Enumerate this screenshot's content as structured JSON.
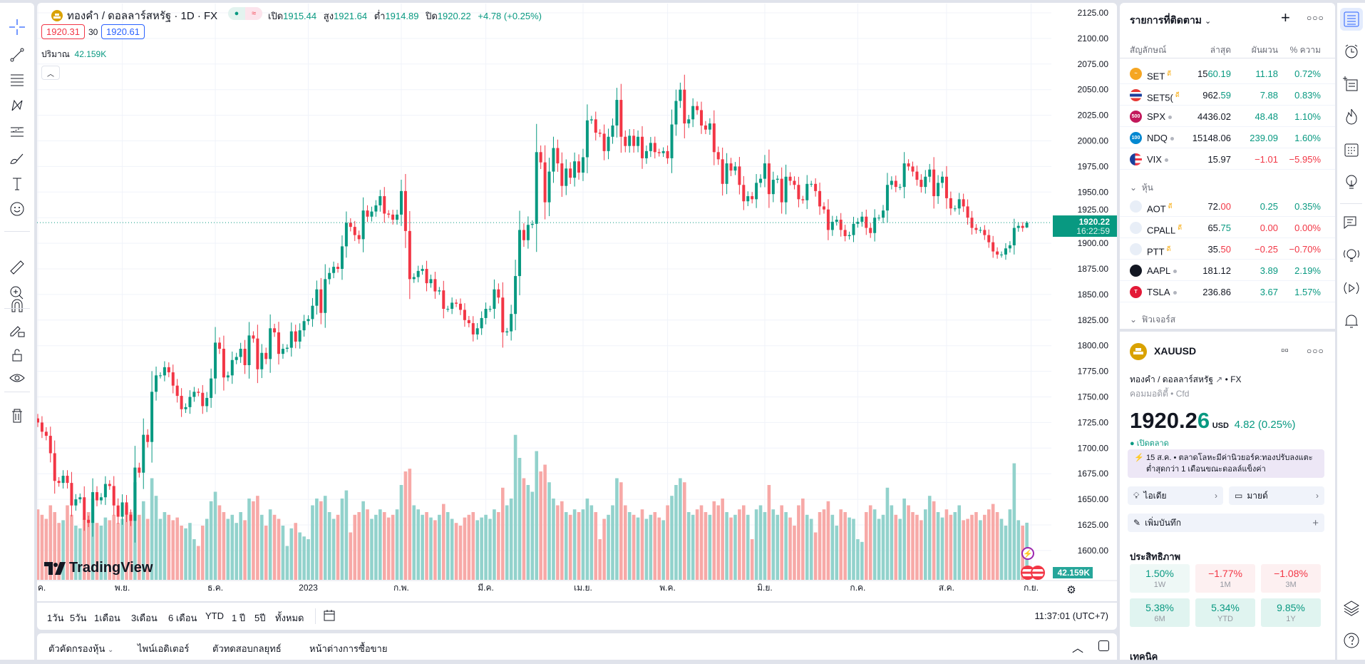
{
  "colors": {
    "up": "#089981",
    "down": "#f23645",
    "vol_up": "#92d2cc",
    "vol_down": "#f7a9a7",
    "accent": "#2962ff",
    "grid": "#f0f3fa"
  },
  "left_toolbar": [
    "crosshair-icon",
    "trend-line-icon",
    "fib-lines-icon",
    "pattern-icon",
    "forecast-icon",
    "brush-icon",
    "text-icon",
    "emoji-icon",
    "ruler-icon",
    "zoom-in-icon",
    "magnet-icon",
    "lock-drawings-icon",
    "unlock-icon",
    "eye-icon",
    "trash-icon"
  ],
  "chart_header": {
    "title": "ทองคำ / ดอลลาร์สหรัฐ · 1D · FX",
    "open_label": "เปิด",
    "open": "1915.44",
    "high_label": "สูง",
    "high": "1921.64",
    "low_label": "ต่ำ",
    "low": "1914.89",
    "close_label": "ปิด",
    "close": "1920.22",
    "change": "+4.78 (+0.25%)",
    "sell": "1920.31",
    "spread": "30",
    "buy": "1920.61",
    "volume_label": "ปริมาณ",
    "volume": "42.159K"
  },
  "price_axis": {
    "ticks": [
      "2125.00",
      "2100.00",
      "2075.00",
      "2050.00",
      "2025.00",
      "2000.00",
      "1975.00",
      "1950.00",
      "1925.00",
      "1900.00",
      "1875.00",
      "1850.00",
      "1825.00",
      "1800.00",
      "1775.00",
      "1750.00",
      "1725.00",
      "1700.00",
      "1675.00",
      "1650.00",
      "1625.00",
      "1600.00"
    ],
    "last_price": "1920.22",
    "countdown": "16:22:59",
    "volume_badge": "42.159K"
  },
  "watermark": "TradingView",
  "chart_data": {
    "type": "candlestick",
    "symbol": "XAUUSD",
    "interval": "1D",
    "ylim": [
      1600,
      2125
    ],
    "last_candle": {
      "open": 1915.44,
      "high": 1921.64,
      "low": 1914.89,
      "close": 1920.22
    },
    "months": [
      {
        "label": "ต.ค.",
        "closes": [
          1725,
          1716,
          1712,
          1695,
          1668,
          1666,
          1673,
          1666,
          1644,
          1650,
          1652,
          1630,
          1627,
          1657,
          1649,
          1652,
          1665,
          1663,
          1644,
          1633
        ],
        "volumes_k": [
          52,
          48,
          45,
          55,
          50,
          42,
          44,
          55,
          48,
          40,
          38,
          45,
          50,
          60,
          42,
          40,
          46,
          44,
          48,
          42
        ]
      },
      {
        "label": "พ.ย.",
        "closes": [
          1647,
          1635,
          1629,
          1681,
          1676,
          1713,
          1706,
          1755,
          1771,
          1771,
          1779,
          1774,
          1761,
          1751,
          1738,
          1740,
          1750,
          1755,
          1754,
          1741,
          1749,
          1768
        ],
        "volumes_k": [
          45,
          55,
          50,
          72,
          48,
          58,
          45,
          75,
          62,
          45,
          50,
          48,
          44,
          46,
          40,
          38,
          42,
          30,
          25,
          40,
          45,
          58
        ]
      },
      {
        "label": "ธ.ค.",
        "closes": [
          1803,
          1797,
          1769,
          1771,
          1786,
          1789,
          1797,
          1781,
          1810,
          1807,
          1777,
          1793,
          1787,
          1817,
          1813,
          1792,
          1797,
          1798,
          1814,
          1804,
          1815,
          1824
        ],
        "volumes_k": [
          65,
          55,
          50,
          45,
          48,
          42,
          50,
          44,
          60,
          58,
          62,
          48,
          40,
          52,
          48,
          45,
          40,
          25,
          38,
          42,
          35,
          32
        ]
      },
      {
        "label": "2023",
        "closes": [
          1826,
          1839,
          1855,
          1832,
          1865,
          1871,
          1877,
          1875,
          1897,
          1920,
          1916,
          1908,
          1904,
          1932,
          1926,
          1931,
          1937,
          1946,
          1929,
          1928,
          1923,
          1928
        ],
        "volumes_k": [
          30,
          55,
          60,
          58,
          62,
          50,
          45,
          48,
          60,
          66,
          35,
          48,
          50,
          58,
          52,
          45,
          48,
          52,
          50,
          46,
          48,
          52
        ]
      },
      {
        "label": "ก.พ.",
        "closes": [
          1951,
          1912,
          1865,
          1867,
          1873,
          1875,
          1861,
          1865,
          1853,
          1854,
          1836,
          1836,
          1842,
          1841,
          1835,
          1825,
          1822,
          1811,
          1817,
          1827
        ],
        "volumes_k": [
          70,
          80,
          82,
          55,
          52,
          48,
          50,
          46,
          44,
          48,
          56,
          50,
          45,
          42,
          40,
          46,
          48,
          50,
          44,
          46
        ]
      },
      {
        "label": "มี.ค.",
        "closes": [
          1836,
          1836,
          1855,
          1847,
          1813,
          1814,
          1831,
          1868,
          1913,
          1903,
          1918,
          1919,
          1989,
          1979,
          1940,
          1970,
          1993,
          1978,
          1956,
          1973,
          1964,
          1980,
          1969
        ],
        "volumes_k": [
          48,
          45,
          52,
          50,
          68,
          55,
          60,
          107,
          90,
          75,
          70,
          65,
          95,
          80,
          85,
          72,
          60,
          55,
          58,
          50,
          48,
          52,
          50
        ]
      },
      {
        "label": "เม.ย.",
        "closes": [
          1984,
          2020,
          2021,
          2008,
          2007,
          1990,
          2004,
          2015,
          2040,
          2004,
          1995,
          2005,
          1995,
          2004,
          1983,
          1990,
          1998,
          1989,
          1988,
          1990
        ],
        "volumes_k": [
          52,
          60,
          55,
          50,
          30,
          45,
          48,
          55,
          75,
          72,
          55,
          50,
          48,
          46,
          52,
          45,
          48,
          50,
          46,
          44
        ]
      },
      {
        "label": "พ.ค.",
        "closes": [
          1983,
          2016,
          2039,
          2050,
          2017,
          2021,
          2034,
          2030,
          2015,
          2011,
          2017,
          1989,
          1982,
          1958,
          1978,
          1971,
          1975,
          1957,
          1941,
          1946,
          1943,
          1959,
          1963
        ],
        "volumes_k": [
          55,
          62,
          70,
          75,
          72,
          50,
          48,
          52,
          55,
          50,
          48,
          58,
          55,
          60,
          50,
          46,
          48,
          52,
          55,
          48,
          30,
          52,
          55
        ]
      },
      {
        "label": "มิ.ย.",
        "closes": [
          1978,
          1948,
          1962,
          1963,
          1940,
          1965,
          1961,
          1957,
          1943,
          1942,
          1958,
          1958,
          1951,
          1936,
          1933,
          1913,
          1921,
          1923,
          1913,
          1907,
          1908,
          1919
        ],
        "volumes_k": [
          50,
          70,
          52,
          48,
          55,
          50,
          46,
          40,
          55,
          60,
          48,
          45,
          35,
          50,
          52,
          58,
          48,
          40,
          52,
          50,
          46,
          45
        ]
      },
      {
        "label": "ก.ค.",
        "closes": [
          1921,
          1926,
          1915,
          1910,
          1925,
          1925,
          1932,
          1957,
          1961,
          1955,
          1955,
          1978,
          1975,
          1970,
          1962,
          1955,
          1965,
          1972,
          1946,
          1959,
          1965
        ],
        "volumes_k": [
          30,
          28,
          50,
          55,
          52,
          45,
          48,
          68,
          55,
          48,
          45,
          60,
          55,
          50,
          48,
          44,
          52,
          62,
          58,
          50,
          46
        ]
      },
      {
        "label": "ส.ค.",
        "closes": [
          1944,
          1934,
          1934,
          1943,
          1936,
          1925,
          1915,
          1913,
          1913,
          1908,
          1901,
          1892,
          1889,
          1889,
          1895,
          1898,
          1915,
          1917,
          1915,
          1920.22
        ],
        "volumes_k": [
          52,
          48,
          50,
          55,
          44,
          45,
          48,
          50,
          44,
          48,
          52,
          56,
          50,
          45,
          40,
          52,
          86,
          44,
          40,
          42.159
        ]
      },
      {
        "label": "ก.ย.",
        "closes": [],
        "volumes_k": []
      }
    ]
  },
  "range_bar": {
    "items": [
      "1วัน",
      "5วัน",
      "1เดือน",
      "3เดือน",
      "6 เดือน",
      "YTD",
      "1 ปี",
      "5ปี",
      "ทั้งหมด"
    ],
    "clock": "11:37:01 (UTC+7)"
  },
  "bottom_bar": {
    "items": [
      "ตัวคัดกรองหุ้น",
      "ไพน์เอดิเตอร์",
      "ตัวทดสอบกลยุทธ์",
      "หน้าต่างการซื้อขาย"
    ]
  },
  "watchlist": {
    "title": "รายการที่ติดตาม",
    "columns": [
      "สัญลักษณ์",
      "ล่าสุด",
      "ผันผวน",
      "% ความ"
    ],
    "groups": [
      "หุ้น",
      "ฟิวเจอร์ส"
    ],
    "rows": [
      {
        "symbol": "SET",
        "badge": "ดี",
        "last_main": "15",
        "last_tail": "60.19",
        "tail_tone": "g",
        "change": "11.18",
        "pct": "0.72%",
        "tone": "g",
        "icon": "set-icon",
        "icon_bg": "#f5a623",
        "icon_text": "~"
      },
      {
        "symbol": "SET5(",
        "badge": "ดี",
        "last_main": "962.",
        "last_tail": "59",
        "tail_tone": "g",
        "change": "7.88",
        "pct": "0.83%",
        "tone": "g",
        "icon": "thai-flag-icon",
        "icon_bg": "thai",
        "icon_text": ""
      },
      {
        "symbol": "SPX",
        "badge": "",
        "last_main": "4436.02",
        "last_tail": "",
        "tail_tone": "",
        "change": "48.48",
        "pct": "1.10%",
        "tone": "g",
        "icon": "spx-500-icon",
        "icon_bg": "#c2185b",
        "icon_text": "500"
      },
      {
        "symbol": "NDQ",
        "badge": "",
        "last_main": "15148.06",
        "last_tail": "",
        "tail_tone": "",
        "change": "239.09",
        "pct": "1.60%",
        "tone": "g",
        "icon": "ndq-100-icon",
        "icon_bg": "#0288d1",
        "icon_text": "100"
      },
      {
        "symbol": "VIX",
        "badge": "",
        "last_main": "15.97",
        "last_tail": "",
        "tail_tone": "",
        "change": "−1.01",
        "pct": "−5.95%",
        "tone": "r",
        "icon": "us-flag-icon",
        "icon_bg": "us",
        "icon_text": ""
      },
      {
        "symbol": "AOT",
        "badge": "ดี",
        "last_main": "72.",
        "last_tail": "00",
        "tail_tone": "r",
        "change": "0.25",
        "pct": "0.35%",
        "tone": "g",
        "icon": "aot-logo-icon",
        "icon_bg": "#e8eef7",
        "icon_text": ""
      },
      {
        "symbol": "CPALL",
        "badge": "ดี",
        "last_main": "65.",
        "last_tail": "75",
        "tail_tone": "g",
        "change": "0.00",
        "pct": "0.00%",
        "tone": "r",
        "icon": "cpall-logo-icon",
        "icon_bg": "#e8eef7",
        "icon_text": ""
      },
      {
        "symbol": "PTT",
        "badge": "ดี",
        "last_main": "35.",
        "last_tail": "50",
        "tail_tone": "r",
        "change": "−0.25",
        "pct": "−0.70%",
        "tone": "r",
        "icon": "ptt-logo-icon",
        "icon_bg": "#e8eef7",
        "icon_text": ""
      },
      {
        "symbol": "AAPL",
        "badge": "",
        "last_main": "181.12",
        "last_tail": "",
        "tail_tone": "",
        "change": "3.89",
        "pct": "2.19%",
        "tone": "g",
        "icon": "apple-logo-icon",
        "icon_bg": "#131722",
        "icon_text": ""
      },
      {
        "symbol": "TSLA",
        "badge": "",
        "last_main": "236.86",
        "last_tail": "",
        "tail_tone": "",
        "change": "3.67",
        "pct": "1.57%",
        "tone": "g",
        "icon": "tesla-logo-icon",
        "icon_bg": "#e31937",
        "icon_text": "T"
      }
    ]
  },
  "details": {
    "symbol": "XAUUSD",
    "name": "ทองคำ / ดอลลาร์สหรัฐ",
    "exchange": "FX",
    "category": "คอมมอดิตี้ • Cfd",
    "price_main": "1920.2",
    "price_tail": "6",
    "currency": "USD",
    "change": "4.82 (0.25%)",
    "market_status": "เปิดตลาด",
    "news": "15 ส.ค. • ตลาดโลหะมีค่านิวยอร์ค:ทองปรับลงแตะต่ำสุดกว่า 1 เดือนขณะดอลล์แข็งค่า",
    "ideas": "ไอเดีย",
    "minds": "มายด์",
    "add_note": "เพิ่มบันทึก",
    "performance_title": "ประสิทธิภาพ",
    "performance": [
      {
        "value": "1.50%",
        "label": "1W",
        "tone": "g"
      },
      {
        "value": "−1.77%",
        "label": "1M",
        "tone": "r"
      },
      {
        "value": "−1.08%",
        "label": "3M",
        "tone": "r"
      },
      {
        "value": "5.38%",
        "label": "6M",
        "tone": "g"
      },
      {
        "value": "5.34%",
        "label": "YTD",
        "tone": "g"
      },
      {
        "value": "9.85%",
        "label": "1Y",
        "tone": "g"
      }
    ],
    "technicals_title": "เทคนิค"
  },
  "right_iconbar": [
    "watchlist-icon",
    "alarm-clock-icon",
    "add-list-icon",
    "hotlist-fire-icon",
    "calendar-icon",
    "ideas-bulb-icon",
    "chat-icon",
    "ideas-stream-icon",
    "live-stream-icon",
    "bell-icon",
    "layers-icon",
    "help-icon"
  ]
}
